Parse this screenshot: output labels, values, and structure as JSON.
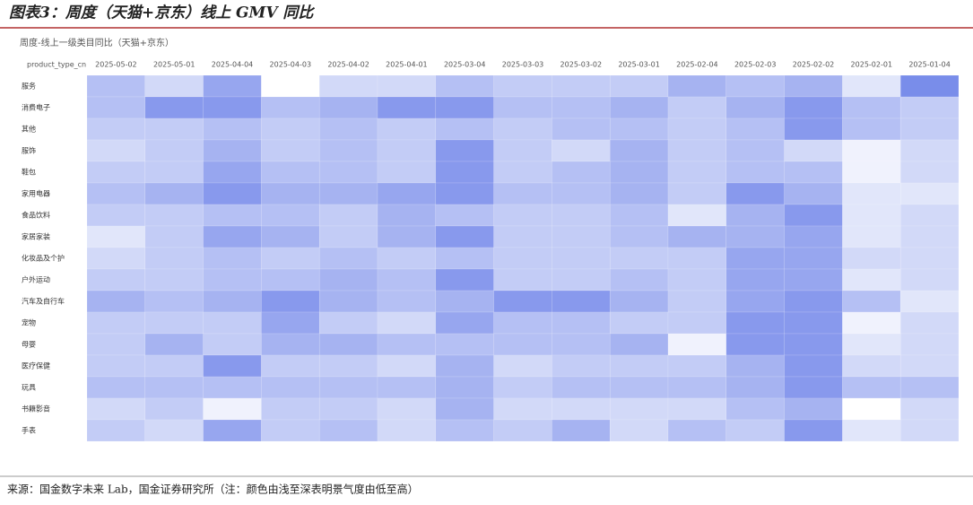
{
  "header": {
    "title": "图表3：周度（天猫+京东）线上 GMV 同比"
  },
  "chart_data": {
    "type": "heatmap",
    "title": "周度-线上一级类目同比（天猫+京东）",
    "y_label": "product_type_cn",
    "categories": [
      "2025-05-02",
      "2025-05-01",
      "2025-04-04",
      "2025-04-03",
      "2025-04-02",
      "2025-04-01",
      "2025-03-04",
      "2025-03-03",
      "2025-03-02",
      "2025-03-01",
      "2025-02-04",
      "2025-02-03",
      "2025-02-02",
      "2025-02-01",
      "2025-01-04"
    ],
    "rows": [
      "服务",
      "消费电子",
      "其他",
      "服饰",
      "鞋包",
      "家用电器",
      "食品饮料",
      "家居家装",
      "化妆品及个护",
      "户外运动",
      "汽车及自行车",
      "宠物",
      "母婴",
      "医疗保健",
      "玩具",
      "书籍影音",
      "手表"
    ],
    "values": [
      [
        5,
        3,
        7,
        0,
        3,
        3,
        5,
        4,
        4,
        4,
        6,
        5,
        6,
        2,
        9
      ],
      [
        5,
        8,
        8,
        5,
        6,
        8,
        8,
        5,
        5,
        6,
        4,
        6,
        8,
        5,
        4
      ],
      [
        4,
        4,
        5,
        4,
        5,
        4,
        5,
        4,
        5,
        5,
        4,
        5,
        8,
        5,
        4
      ],
      [
        3,
        4,
        6,
        4,
        5,
        4,
        8,
        4,
        3,
        6,
        4,
        5,
        3,
        1,
        3
      ],
      [
        4,
        4,
        7,
        5,
        5,
        4,
        8,
        4,
        5,
        6,
        4,
        5,
        5,
        1,
        3
      ],
      [
        5,
        6,
        8,
        6,
        6,
        7,
        8,
        5,
        5,
        6,
        4,
        8,
        6,
        2,
        2
      ],
      [
        4,
        4,
        5,
        5,
        4,
        6,
        5,
        4,
        4,
        5,
        2,
        6,
        8,
        2,
        3
      ],
      [
        2,
        4,
        7,
        6,
        4,
        6,
        8,
        4,
        4,
        5,
        6,
        6,
        7,
        2,
        3
      ],
      [
        3,
        4,
        5,
        4,
        5,
        4,
        5,
        4,
        4,
        4,
        4,
        7,
        7,
        3,
        3
      ],
      [
        4,
        4,
        5,
        5,
        6,
        5,
        8,
        4,
        4,
        5,
        4,
        7,
        7,
        2,
        3
      ],
      [
        6,
        5,
        6,
        8,
        6,
        5,
        6,
        8,
        8,
        6,
        4,
        7,
        8,
        5,
        2
      ],
      [
        4,
        4,
        4,
        7,
        4,
        3,
        7,
        5,
        5,
        4,
        4,
        8,
        8,
        1,
        3
      ],
      [
        4,
        6,
        4,
        6,
        6,
        5,
        5,
        5,
        5,
        6,
        1,
        8,
        8,
        2,
        3
      ],
      [
        4,
        4,
        8,
        4,
        4,
        3,
        6,
        3,
        4,
        4,
        4,
        6,
        8,
        3,
        3
      ],
      [
        5,
        5,
        5,
        5,
        5,
        5,
        6,
        4,
        5,
        5,
        5,
        6,
        8,
        5,
        5
      ],
      [
        3,
        4,
        1,
        4,
        4,
        3,
        6,
        3,
        3,
        3,
        3,
        5,
        6,
        0,
        3
      ],
      [
        4,
        3,
        7,
        4,
        5,
        3,
        5,
        4,
        6,
        3,
        5,
        4,
        8,
        2,
        3
      ]
    ],
    "vlim": [
      0,
      10
    ],
    "colors": [
      "#ffffff",
      "#6a80e8"
    ]
  },
  "footer": {
    "source": "来源：国金数字未来 Lab，国金证券研究所（注：颜色由浅至深表明景气度由低至高）"
  }
}
